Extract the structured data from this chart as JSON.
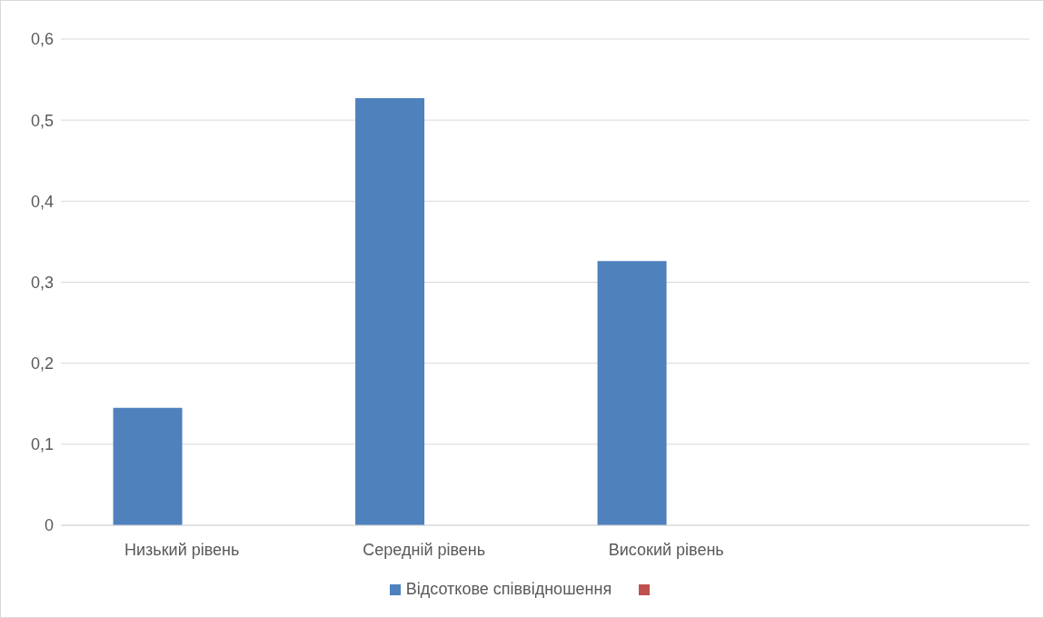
{
  "chart_data": {
    "type": "bar",
    "categories": [
      "Низький рівень",
      "Середній рівень",
      "Високий рівень",
      null
    ],
    "series": [
      {
        "name": "Відсоткове співвідношення",
        "color": "#4f81bd",
        "values": [
          0.145,
          0.527,
          0.326,
          null
        ]
      },
      {
        "color": "#c0504d",
        "values": [
          null,
          null,
          null,
          null
        ]
      }
    ],
    "ylim": [
      0,
      0.6
    ],
    "yticks": [
      {
        "value": 0,
        "label": "0"
      },
      {
        "value": 0.1,
        "label": "0,1"
      },
      {
        "value": 0.2,
        "label": "0,2"
      },
      {
        "value": 0.3,
        "label": "0,3"
      },
      {
        "value": 0.4,
        "label": "0,4"
      },
      {
        "value": 0.5,
        "label": "0,5"
      },
      {
        "value": 0.6,
        "label": "0,6"
      }
    ],
    "grid": "y",
    "legend": "bottom"
  }
}
